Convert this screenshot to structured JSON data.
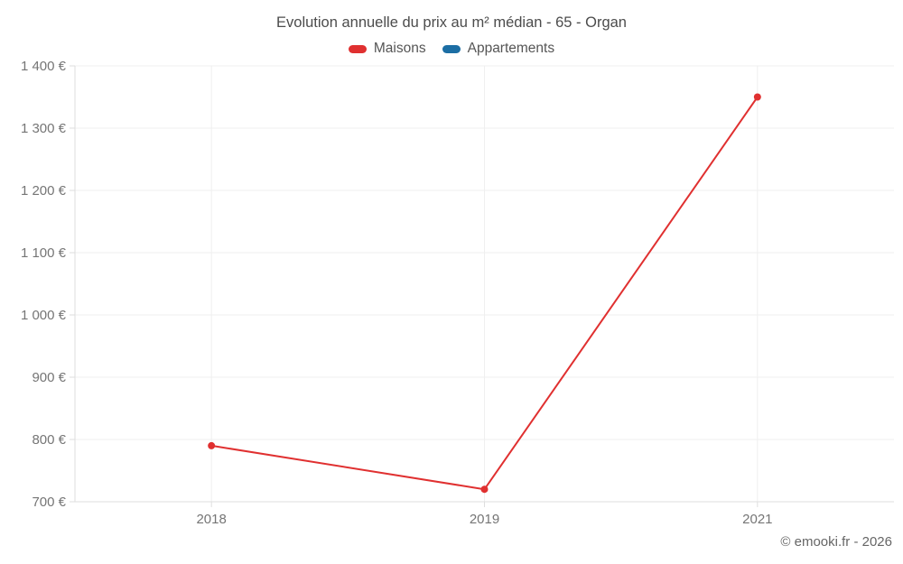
{
  "title": "Evolution annuelle du prix au m² médian - 65 - Organ",
  "footer": {
    "copyright": "© emooki.fr - 2026"
  },
  "ui_colors": {
    "title_text": "#4c4c4c",
    "legend_text": "#555555",
    "tick_label": "#757575",
    "gridline": "#efefef",
    "axis_line": "#dedede",
    "copyright_text": "#666666",
    "background": "#ffffff"
  },
  "chart_data": {
    "type": "line",
    "title": "Evolution annuelle du prix au m² médian - 65 - Organ",
    "categories": [
      "2018",
      "2019",
      "2021"
    ],
    "series": [
      {
        "name": "Maisons",
        "color": "#e03030",
        "values": [
          790,
          720,
          1350
        ]
      },
      {
        "name": "Appartements",
        "color": "#1c6ea4",
        "values": []
      }
    ],
    "xlabel": "",
    "ylabel": "",
    "ylim": [
      700,
      1400
    ],
    "ytick_step": 100,
    "yunit": "€",
    "grid": true,
    "legend_position": "top",
    "point_radius": 4,
    "line_width": 2
  }
}
